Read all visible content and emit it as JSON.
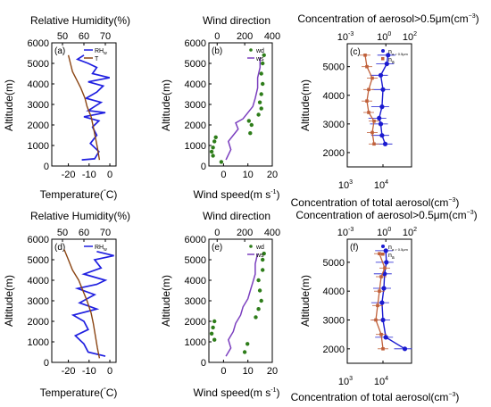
{
  "colors": {
    "rh": "#1f1fe0",
    "temp": "#8b4513",
    "wd": "#2e7d1a",
    "ws": "#7b3fbf",
    "conc_big": "#1a1ad0",
    "conc_total": "#c0603a"
  },
  "panels": {
    "a": {
      "label": "(a)"
    },
    "b": {
      "label": "(b)"
    },
    "c": {
      "label": "(c)"
    },
    "d": {
      "label": "(d)"
    },
    "e": {
      "label": "(e)"
    },
    "f": {
      "label": "(f)"
    }
  },
  "axes": {
    "alt_label": "Altitude(m)",
    "rh_label": "Relative Humidity(%)",
    "temp_label": "Temperature(",
    "temp_unit": "C)",
    "wd_label": "Wind direction",
    "ws_label": "Wind speed(m s",
    "ws_sup": "-1",
    "conc_big_label": "Concentration of aerosol>0.5μm(cm",
    "conc_total_label": "Concentration of total aerosol(cm",
    "conc_sup": "−3",
    "close_paren": ")"
  },
  "legend": {
    "rh": "RH",
    "rh_sub": "w",
    "t": "T",
    "wd": "wd",
    "ws": "ws",
    "n_big": "n",
    "n_big_sub": "a > 0.5μm",
    "n_tot": "n",
    "n_tot_sub": "a"
  },
  "ticks": {
    "alt_left": [
      "0",
      "1000",
      "2000",
      "3000",
      "4000",
      "5000",
      "6000"
    ],
    "alt_right": [
      "2000",
      "3000",
      "4000",
      "5000"
    ],
    "rh": [
      "50",
      "60",
      "70"
    ],
    "temp": [
      "-20",
      "-10",
      "0"
    ],
    "wd": [
      "0",
      "200",
      "400"
    ],
    "ws": [
      "0",
      "10",
      "20"
    ],
    "conc_top": [
      "10",
      "10",
      "10"
    ],
    "conc_top_exp": [
      "-3",
      "0",
      "2"
    ],
    "conc_bottom": [
      "10",
      "10"
    ],
    "conc_bottom_exp": [
      "3",
      "4"
    ]
  },
  "chart_data": [
    {
      "panel": "a",
      "type": "line",
      "y_label": "Altitude(m)",
      "ylim": [
        0,
        6000
      ],
      "top_axis": {
        "label": "Relative Humidity(%)",
        "range": [
          45,
          75
        ]
      },
      "bottom_axis": {
        "label": "Temperature(°C)",
        "range": [
          -28,
          3
        ]
      },
      "series": [
        {
          "name": "RHw",
          "axis": "top",
          "points": [
            [
              59,
              300
            ],
            [
              65,
              350
            ],
            [
              67,
              700
            ],
            [
              63,
              1100
            ],
            [
              66,
              1500
            ],
            [
              64,
              1900
            ],
            [
              67,
              2200
            ],
            [
              60,
              2400
            ],
            [
              70,
              2600
            ],
            [
              62,
              2700
            ],
            [
              65,
              2900
            ],
            [
              68,
              3100
            ],
            [
              61,
              3300
            ],
            [
              66,
              3600
            ],
            [
              69,
              3900
            ],
            [
              62,
              4100
            ],
            [
              72,
              4300
            ],
            [
              64,
              4500
            ],
            [
              66,
              4800
            ],
            [
              62,
              5000
            ],
            [
              57,
              5200
            ],
            [
              60,
              5400
            ]
          ]
        },
        {
          "name": "T",
          "axis": "bottom",
          "points": [
            [
              -5,
              300
            ],
            [
              -6,
              900
            ],
            [
              -7,
              1400
            ],
            [
              -8,
              1900
            ],
            [
              -9,
              2400
            ],
            [
              -11,
              2900
            ],
            [
              -12,
              3300
            ],
            [
              -14,
              3800
            ],
            [
              -16,
              4200
            ],
            [
              -18,
              4600
            ],
            [
              -19,
              5000
            ],
            [
              -20,
              5400
            ]
          ]
        }
      ]
    },
    {
      "panel": "b",
      "type": "line",
      "y_label": "Altitude(m)",
      "ylim": [
        0,
        6000
      ],
      "top_axis": {
        "label": "Wind direction",
        "range": [
          -60,
          400
        ]
      },
      "bottom_axis": {
        "label": "Wind speed(m s-1)",
        "range": [
          -6,
          20
        ]
      },
      "series": [
        {
          "name": "wd",
          "axis": "top",
          "points": [
            [
              30,
              200
            ],
            [
              -30,
              500
            ],
            [
              -40,
              700
            ],
            [
              -30,
              900
            ],
            [
              -20,
              1200
            ],
            [
              -10,
              1400
            ],
            [
              240,
              1600
            ],
            [
              250,
              2000
            ],
            [
              230,
              2200
            ],
            [
              300,
              2500
            ],
            [
              320,
              2800
            ],
            [
              310,
              3100
            ],
            [
              320,
              3500
            ],
            [
              330,
              4000
            ],
            [
              320,
              4500
            ],
            [
              330,
              5000
            ],
            [
              340,
              5400
            ]
          ]
        },
        {
          "name": "ws",
          "axis": "bottom",
          "points": [
            [
              1,
              300
            ],
            [
              3,
              800
            ],
            [
              2,
              1200
            ],
            [
              4,
              1500
            ],
            [
              6,
              1800
            ],
            [
              5,
              2100
            ],
            [
              8,
              2300
            ],
            [
              10,
              2600
            ],
            [
              12,
              2900
            ],
            [
              13,
              3300
            ],
            [
              14,
              3800
            ],
            [
              14,
              4300
            ],
            [
              15,
              4800
            ],
            [
              15,
              5300
            ]
          ]
        }
      ]
    },
    {
      "panel": "c",
      "type": "line",
      "y_label": "Altitude(m)",
      "ylim": [
        1500,
        5800
      ],
      "top_axis": {
        "label": "Concentration of aerosol>0.5μm(cm-3)",
        "log_range": [
          -3,
          2
        ]
      },
      "bottom_axis": {
        "label": "Concentration of total aerosol(cm-3)",
        "log_range": [
          3,
          4.8
        ]
      },
      "series": [
        {
          "name": "na>0.5μm",
          "axis": "top",
          "points": [
            [
              0.9,
              2300
            ],
            [
              0.5,
              2600
            ],
            [
              0.4,
              3000
            ],
            [
              0.3,
              3200
            ],
            [
              0.5,
              3600
            ],
            [
              0.6,
              4200
            ],
            [
              0.4,
              4700
            ],
            [
              1.2,
              5100
            ],
            [
              1.5,
              5400
            ]
          ]
        },
        {
          "name": "na",
          "axis": "bottom",
          "points": [
            [
              3.75,
              2300
            ],
            [
              3.7,
              2700
            ],
            [
              3.75,
              3100
            ],
            [
              3.6,
              3400
            ],
            [
              3.55,
              3800
            ],
            [
              3.6,
              4200
            ],
            [
              3.7,
              4600
            ],
            [
              3.55,
              5000
            ],
            [
              3.5,
              5400
            ]
          ]
        }
      ]
    },
    {
      "panel": "d",
      "type": "line",
      "y_label": "Altitude(m)",
      "ylim": [
        0,
        6000
      ],
      "top_axis": {
        "label": "Relative Humidity(%)",
        "range": [
          45,
          75
        ]
      },
      "bottom_axis": {
        "label": "Temperature(°C)",
        "range": [
          -28,
          3
        ]
      },
      "series": [
        {
          "name": "RHw",
          "axis": "top",
          "points": [
            [
              70,
              300
            ],
            [
              62,
              500
            ],
            [
              60,
              900
            ],
            [
              56,
              1300
            ],
            [
              62,
              1600
            ],
            [
              60,
              2000
            ],
            [
              55,
              2300
            ],
            [
              66,
              2600
            ],
            [
              58,
              2900
            ],
            [
              65,
              3300
            ],
            [
              57,
              3600
            ],
            [
              66,
              3800
            ],
            [
              70,
              4000
            ],
            [
              60,
              4300
            ],
            [
              68,
              4600
            ],
            [
              65,
              5000
            ],
            [
              74,
              5200
            ],
            [
              66,
              5400
            ]
          ]
        },
        {
          "name": "T",
          "axis": "bottom",
          "points": [
            [
              -5,
              200
            ],
            [
              -6,
              700
            ],
            [
              -7,
              1300
            ],
            [
              -8,
              1900
            ],
            [
              -9,
              2400
            ],
            [
              -11,
              3000
            ],
            [
              -13,
              3500
            ],
            [
              -15,
              4000
            ],
            [
              -18,
              4500
            ],
            [
              -20,
              5000
            ],
            [
              -22,
              5500
            ]
          ]
        }
      ]
    },
    {
      "panel": "e",
      "type": "line",
      "y_label": "Altitude(m)",
      "ylim": [
        0,
        6000
      ],
      "top_axis": {
        "label": "Wind direction",
        "range": [
          -60,
          400
        ]
      },
      "bottom_axis": {
        "label": "Wind speed(m s-1)",
        "range": [
          -6,
          20
        ]
      },
      "series": [
        {
          "name": "wd",
          "axis": "top",
          "points": [
            [
              200,
              500
            ],
            [
              220,
              900
            ],
            [
              -20,
              1100
            ],
            [
              -40,
              1400
            ],
            [
              -30,
              1700
            ],
            [
              -20,
              2000
            ],
            [
              280,
              2200
            ],
            [
              300,
              2600
            ],
            [
              320,
              3000
            ],
            [
              310,
              3500
            ],
            [
              300,
              4000
            ],
            [
              330,
              4500
            ],
            [
              330,
              5000
            ],
            [
              340,
              5300
            ]
          ]
        },
        {
          "name": "ws",
          "axis": "bottom",
          "points": [
            [
              1,
              300
            ],
            [
              3,
              700
            ],
            [
              2,
              1100
            ],
            [
              4,
              1500
            ],
            [
              5,
              1900
            ],
            [
              7,
              2300
            ],
            [
              8,
              2700
            ],
            [
              10,
              3100
            ],
            [
              11,
              3500
            ],
            [
              12,
              3900
            ],
            [
              13,
              4300
            ],
            [
              13,
              4800
            ],
            [
              14,
              5300
            ]
          ]
        }
      ]
    },
    {
      "panel": "f",
      "type": "line",
      "y_label": "Altitude(m)",
      "ylim": [
        1500,
        5800
      ],
      "top_axis": {
        "label": "Concentration of aerosol>0.5μm(cm-3)",
        "log_range": [
          -3,
          2
        ]
      },
      "bottom_axis": {
        "label": "Concentration of total aerosol(cm-3)",
        "log_range": [
          3,
          4.8
        ]
      },
      "series": [
        {
          "name": "na>0.5μm",
          "axis": "top",
          "points": [
            [
              30,
              2000
            ],
            [
              1.0,
              2400
            ],
            [
              0.6,
              3000
            ],
            [
              0.5,
              3600
            ],
            [
              0.7,
              4100
            ],
            [
              0.8,
              4600
            ],
            [
              1.1,
              5000
            ],
            [
              1.0,
              5400
            ]
          ]
        },
        {
          "name": "na",
          "axis": "bottom",
          "points": [
            [
              4.0,
              2000
            ],
            [
              3.95,
              2500
            ],
            [
              3.8,
              3000
            ],
            [
              3.85,
              3500
            ],
            [
              3.9,
              4000
            ],
            [
              3.95,
              4500
            ],
            [
              4.05,
              4800
            ],
            [
              3.9,
              5300
            ]
          ]
        }
      ]
    }
  ]
}
